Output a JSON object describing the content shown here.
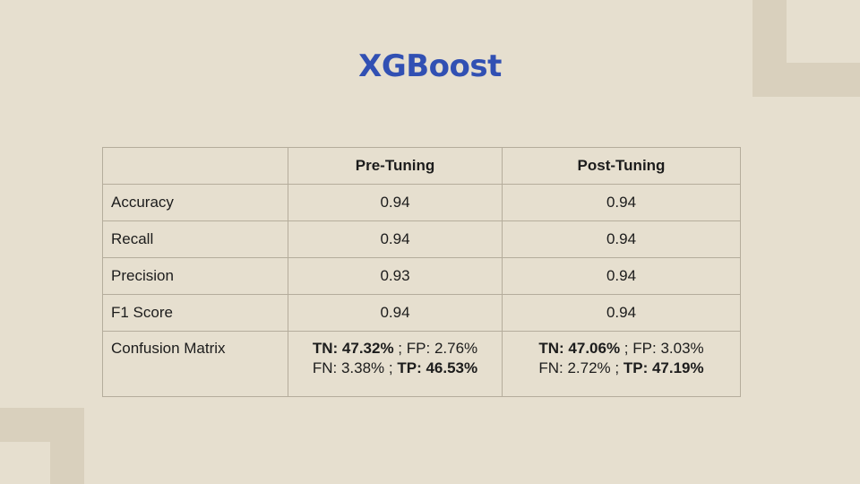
{
  "title": "XGBoost",
  "table": {
    "headers": [
      "",
      "Pre-Tuning",
      "Post-Tuning"
    ],
    "rows": [
      {
        "metric": "Accuracy",
        "pre": "0.94",
        "post": "0.94"
      },
      {
        "metric": "Recall",
        "pre": "0.94",
        "post": "0.94"
      },
      {
        "metric": "Precision",
        "pre": "0.93",
        "post": "0.94"
      },
      {
        "metric": "F1 Score",
        "pre": "0.94",
        "post": "0.94"
      }
    ],
    "confusion": {
      "metric": "Confusion Matrix",
      "pre": {
        "tn_label": "TN:",
        "tn": "47.32%",
        "fp_label": "FP:",
        "fp": "2.76%",
        "fn_label": "FN:",
        "fn": "3.38%",
        "tp_label": "TP:",
        "tp": "46.53%"
      },
      "post": {
        "tn_label": "TN:",
        "tn": "47.06%",
        "fp_label": "FP:",
        "fp": "3.03%",
        "fn_label": "FN:",
        "fn": "2.72%",
        "tp_label": "TP:",
        "tp": "47.19%"
      }
    }
  },
  "colors": {
    "background": "#e6dfcf",
    "decoration": "#d9d0bd",
    "title": "#3150b3",
    "border": "#b5ad9c"
  }
}
